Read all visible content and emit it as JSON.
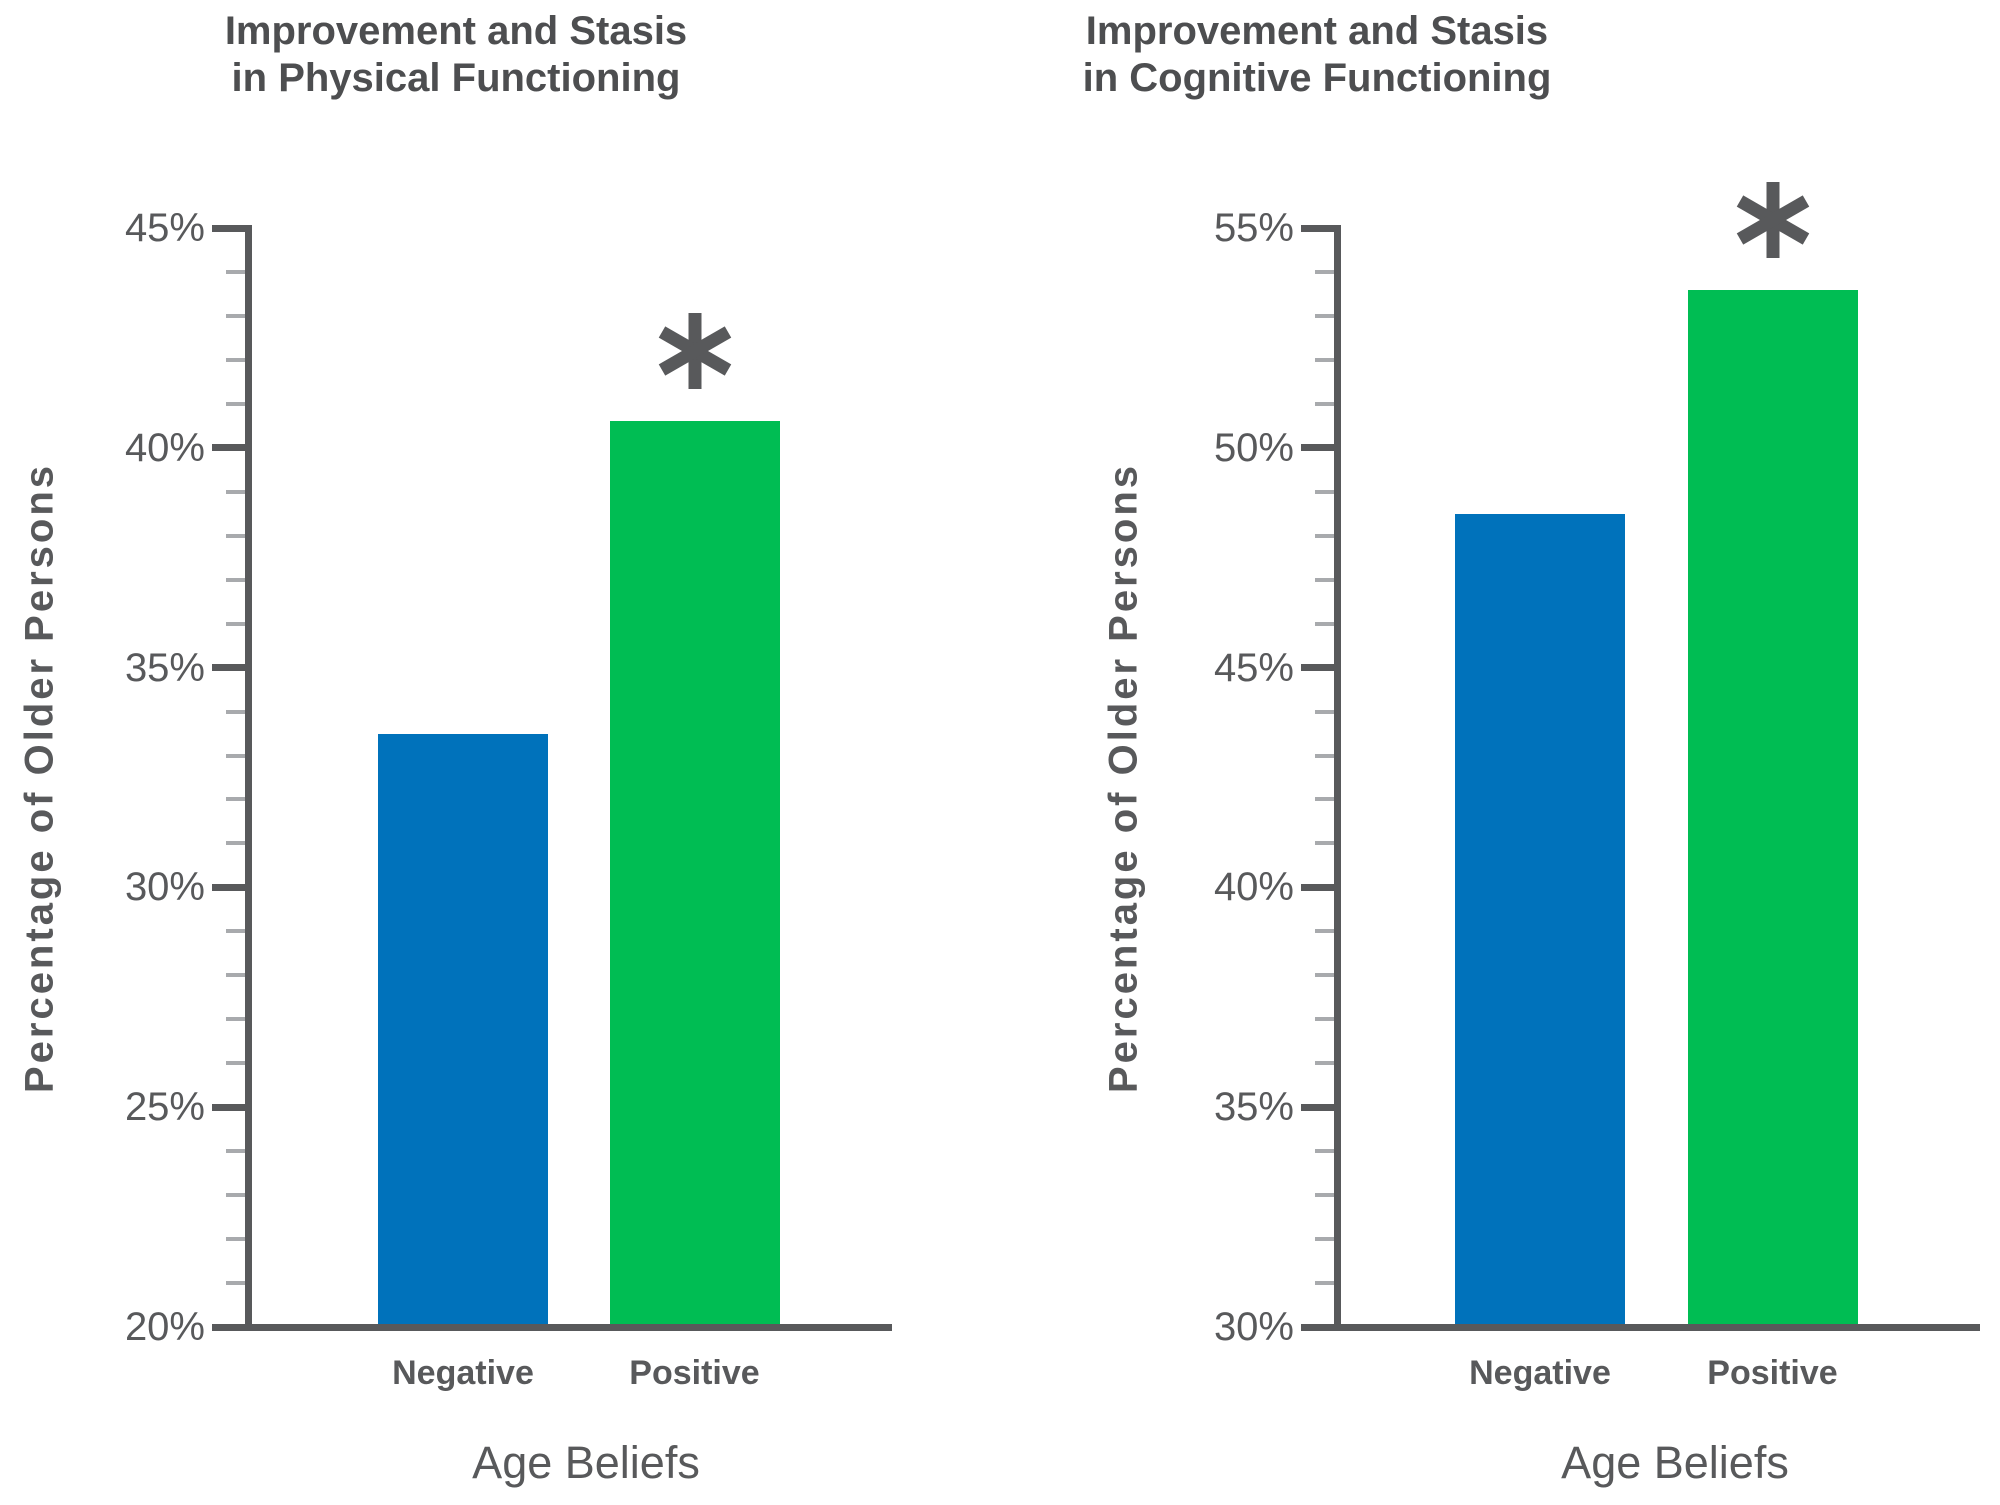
{
  "chart_data": [
    {
      "type": "bar",
      "title": "Improvement and Stasis in Physical Functioning",
      "title_line1": "Improvement and Stasis",
      "title_line2": "in Physical Functioning",
      "xlabel": "Age Beliefs",
      "ylabel": "Percentage of Older Persons",
      "categories": [
        "Negative",
        "Positive"
      ],
      "values": [
        33.5,
        40.6
      ],
      "bar_colors": [
        "#0072BB",
        "#00BD53"
      ],
      "annotations": [
        "",
        "*"
      ],
      "y_axis": {
        "min": 20,
        "max": 45,
        "major_step": 5,
        "minor_step": 1,
        "tick_labels": [
          "20%",
          "25%",
          "30%",
          "35%",
          "40%",
          "45%"
        ]
      },
      "grid": false,
      "legend": false
    },
    {
      "type": "bar",
      "title": "Improvement and Stasis in Cognitive Functioning",
      "title_line1": "Improvement and Stasis",
      "title_line2": "in Cognitive Functioning",
      "xlabel": "Age Beliefs",
      "ylabel": "Percentage of Older Persons",
      "categories": [
        "Negative",
        "Positive"
      ],
      "values": [
        48.5,
        53.6
      ],
      "bar_colors": [
        "#0072BB",
        "#00BD53"
      ],
      "annotations": [
        "",
        "*"
      ],
      "y_axis": {
        "min": 30,
        "max": 55,
        "major_step": 5,
        "minor_step": 1,
        "tick_labels": [
          "30%",
          "35%",
          "40%",
          "45%",
          "50%",
          "55%"
        ]
      },
      "grid": false,
      "legend": false
    }
  ],
  "style": {
    "background": "#FFFFFF",
    "axis_color": "#58595B",
    "minor_tick_color": "#A8AAAD",
    "title_color": "#4D4E50",
    "label_color": "#58595B",
    "negative_bar_color": "#0072BB",
    "positive_bar_color": "#00BD53",
    "significance_marker": "*"
  }
}
